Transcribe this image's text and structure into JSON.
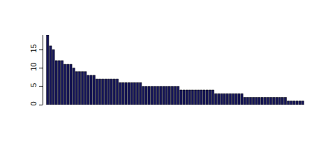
{
  "chart_data": {
    "type": "bar",
    "categories": [
      null,
      null,
      null,
      null,
      null,
      null,
      null,
      null,
      null,
      null,
      null,
      null,
      null,
      null,
      null,
      null,
      null,
      null,
      null,
      null,
      null,
      null,
      null,
      null,
      null,
      null,
      null,
      null,
      null,
      null,
      null,
      null,
      null,
      null,
      null,
      null,
      null,
      null,
      null,
      null,
      null,
      null,
      null,
      null,
      null,
      null,
      null,
      null,
      null,
      null,
      null,
      null,
      null,
      null,
      null,
      null,
      null,
      null,
      null,
      null,
      null,
      null,
      null,
      null,
      null,
      null,
      null,
      null,
      null,
      null,
      null,
      null,
      null,
      null,
      null,
      null,
      null,
      null,
      null,
      null,
      null,
      null,
      null,
      null,
      null,
      null,
      null,
      null,
      null
    ],
    "values": [
      19,
      16,
      15,
      12,
      12,
      12,
      11,
      11,
      11,
      10,
      9,
      9,
      9,
      9,
      8,
      8,
      8,
      7,
      7,
      7,
      7,
      7,
      7,
      7,
      7,
      6,
      6,
      6,
      6,
      6,
      6,
      6,
      6,
      5,
      5,
      5,
      5,
      5,
      5,
      5,
      5,
      5,
      5,
      5,
      5,
      5,
      4,
      4,
      4,
      4,
      4,
      4,
      4,
      4,
      4,
      4,
      4,
      4,
      3,
      3,
      3,
      3,
      3,
      3,
      3,
      3,
      3,
      3,
      2,
      2,
      2,
      2,
      2,
      2,
      2,
      2,
      2,
      2,
      2,
      2,
      2,
      2,
      2,
      1,
      1,
      1,
      1,
      1,
      1
    ],
    "color": "#15155a",
    "ylim": [
      0,
      19
    ],
    "yticks": [
      0,
      5,
      10,
      15
    ],
    "grid": false,
    "tick_labels": "y"
  }
}
